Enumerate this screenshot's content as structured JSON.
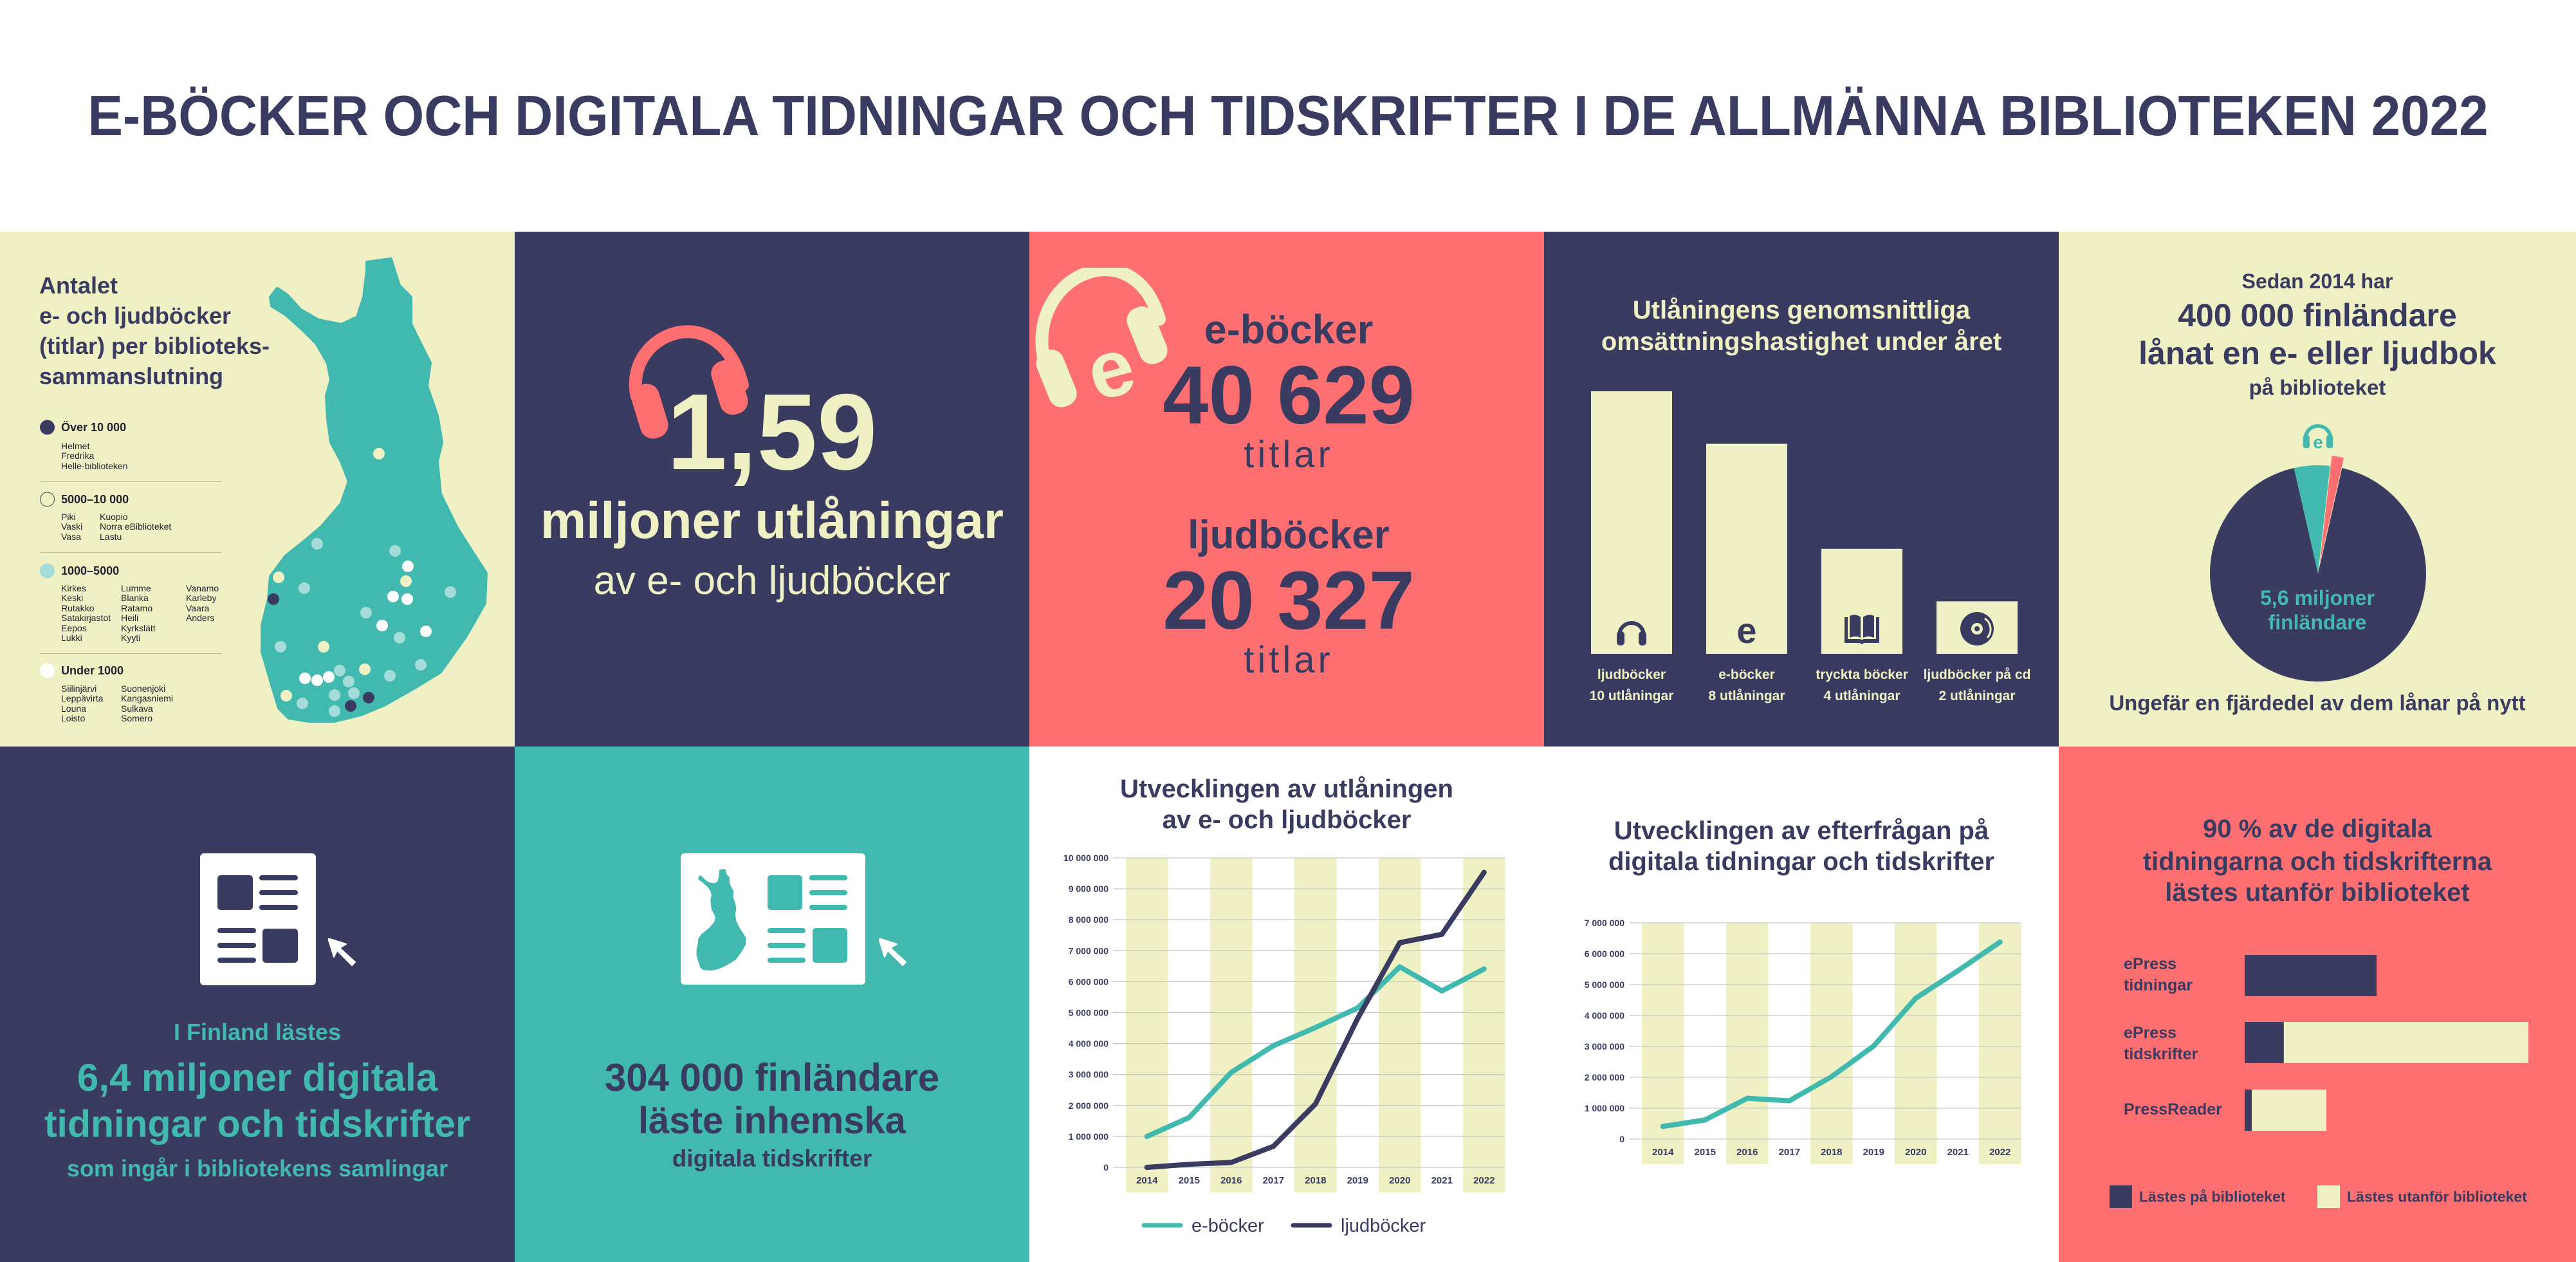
{
  "page": {
    "title": "E-BÖCKER OCH DIGITALA TIDNINGAR OCH TIDSKRIFTER I DE ALLMÄNNA BIBLIOTEKEN 2022"
  },
  "colors": {
    "navy": "#393b60",
    "pink": "#fe6f71",
    "cream": "#eff0c4",
    "teal": "#42b9af",
    "light_teal": "#a4dcd9",
    "white": "#ffffff",
    "grid": "#c9c9c9"
  },
  "map_panel": {
    "heading": [
      "Antalet",
      "e- och ljudböcker",
      "(titlar) per biblioteks-",
      "sammanslutning"
    ],
    "legend": [
      {
        "label": "Över 10 000",
        "swatch": "navy",
        "columns": [
          [
            "Helmet",
            "Fredrika",
            "Helle-biblioteken"
          ]
        ]
      },
      {
        "label": "5000–10 000",
        "swatch": "outline",
        "columns": [
          [
            "Piki",
            "Vaski",
            "Vasa"
          ],
          [
            "Kuopio",
            "Norra eBiblioteket",
            "Lastu"
          ]
        ]
      },
      {
        "label": "1000–5000",
        "swatch": "light_teal",
        "columns": [
          [
            "Kirkes",
            "Keski",
            "Rutakko",
            "Satakirjastot",
            "Eepos",
            "Lukki"
          ],
          [
            "Lumme",
            "Blanka",
            "Ratamo",
            "Heili",
            "Kyrkslätt",
            "Kyyti"
          ],
          [
            "Vanamo",
            "Karleby",
            "Vaara",
            "Anders"
          ]
        ]
      },
      {
        "label": "Under 1000",
        "swatch": "white",
        "columns": [
          [
            "Siilinjärvi",
            "Leppävirta",
            "Louna",
            "Loisto"
          ],
          [
            "Suonenjoki",
            "Kangasniemi",
            "Sulkava",
            "Somero"
          ]
        ]
      }
    ]
  },
  "loans_panel": {
    "icon": "headphones-icon",
    "value": "1,59",
    "line1": "miljoner utlåningar",
    "line2": "av e- och ljudböcker"
  },
  "titles_panel": {
    "icon": "headphones-e-icon",
    "ebooks": {
      "label": "e-böcker",
      "value": "40 629",
      "unit": "titlar"
    },
    "audiobooks": {
      "label": "ljudböcker",
      "value": "20 327",
      "unit": "titlar"
    }
  },
  "borrowers_panel": {
    "intro": "Sedan 2014 har",
    "headline": [
      "400 000 finländare",
      "lånat en e- eller ljudbok"
    ],
    "sub": "på biblioteket",
    "footer": "Ungefär en fjärdedel av dem lånar på nytt"
  },
  "digital_reads_panel": {
    "icon": "newspaper-icon",
    "intro": "I Finland lästes",
    "headline": [
      "6,4 miljoner digitala",
      "tidningar och tidskrifter"
    ],
    "sub": "som ingår i bibliotekens samlingar"
  },
  "domestic_panel": {
    "icon": "finland-newspaper-icon",
    "headline": [
      "304 000 finländare",
      "läste inhemska"
    ],
    "sub": "digitala tidskrifter"
  },
  "chart_data": [
    {
      "type": "bar",
      "title": [
        "Utlåningens genomsnittliga",
        "omsättningshastighet under året"
      ],
      "categories": [
        "ljudböcker",
        "e-böcker",
        "tryckta böcker",
        "ljudböcker på cd"
      ],
      "values": [
        10,
        8,
        4,
        2
      ],
      "value_labels": [
        "10 utlåningar",
        "8 utlåningar",
        "4 utlåningar",
        "2 utlåningar"
      ],
      "icons": [
        "headphones-icon",
        "e-letter-icon",
        "open-book-icon",
        "cd-icon"
      ],
      "xlabel": "",
      "ylabel": "",
      "ylim": [
        0,
        10
      ],
      "grid": false,
      "legend": "none"
    },
    {
      "type": "pie",
      "center_label": [
        "5,6 miljoner",
        "finländare"
      ],
      "slices": [
        {
          "key": "rest",
          "value": 5200000,
          "color": "#393b60"
        },
        {
          "key": "borrowed",
          "value": 300000,
          "color": "#42b9af"
        },
        {
          "key": "borrows_again",
          "value": 100000,
          "color": "#fe6f71",
          "exploded": true
        }
      ]
    },
    {
      "type": "line",
      "title": [
        "Utvecklingen av utlåningen",
        "av e- och ljudböcker"
      ],
      "x": [
        "2014",
        "2015",
        "2016",
        "2017",
        "2018",
        "2019",
        "2020",
        "2021",
        "2022"
      ],
      "ylim": [
        0,
        10000000
      ],
      "yticks": [
        0,
        1000000,
        2000000,
        3000000,
        4000000,
        5000000,
        6000000,
        7000000,
        8000000,
        9000000,
        10000000
      ],
      "ytick_labels": [
        "0",
        "1 000 000",
        "2 000 000",
        "3 000 000",
        "4 000 000",
        "5 000 000",
        "6 000 000",
        "7 000 000",
        "8 000 000",
        "9 000 000",
        "10 000 000"
      ],
      "grid": true,
      "legend": "bottom",
      "series": [
        {
          "name": "e-böcker",
          "color": "#42b9af",
          "values": [
            1000000,
            1610000,
            3070000,
            3930000,
            4520000,
            5150000,
            6480000,
            5700000,
            6410000
          ]
        },
        {
          "name": "ljudböcker",
          "color": "#393b60",
          "values": [
            0,
            100000,
            160000,
            680000,
            2050000,
            4810000,
            7260000,
            7530000,
            9530000
          ]
        }
      ]
    },
    {
      "type": "line",
      "title": [
        "Utvecklingen av efterfrågan på",
        "digitala tidningar och tidskrifter"
      ],
      "x": [
        "2014",
        "2015",
        "2016",
        "2017",
        "2018",
        "2019",
        "2020",
        "2021",
        "2022"
      ],
      "ylim": [
        0,
        7000000
      ],
      "yticks": [
        0,
        1000000,
        2000000,
        3000000,
        4000000,
        5000000,
        6000000,
        7000000
      ],
      "ytick_labels": [
        "0",
        "1 000 000",
        "2 000 000",
        "3 000 000",
        "4 000 000",
        "5 000 000",
        "6 000 000",
        "7 000 000"
      ],
      "grid": true,
      "legend": "none",
      "series": [
        {
          "color": "#42b9af",
          "values": [
            410000,
            620000,
            1320000,
            1240000,
            2020000,
            3010000,
            4560000,
            5450000,
            6380000
          ]
        }
      ]
    },
    {
      "type": "bar",
      "orientation": "horizontal",
      "stacked": true,
      "title": [
        "90 % av de digitala",
        "tidningarna och tidskrifterna",
        "lästes utanför biblioteket"
      ],
      "categories": [
        [
          "ePress",
          "tidningar"
        ],
        [
          "ePress",
          "tidskrifter"
        ],
        [
          "PressReader"
        ]
      ],
      "xlim": [
        0,
        100
      ],
      "legend": "bottom",
      "series": [
        {
          "name": "Lästes på biblioteket",
          "color": "#393b60",
          "values": [
            46.5,
            13.8,
            2.5
          ]
        },
        {
          "name": "Lästes utanför biblioteket",
          "color": "#eff0c4",
          "values": [
            0,
            86.2,
            26.3
          ]
        }
      ]
    }
  ]
}
